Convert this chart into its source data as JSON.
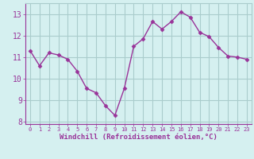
{
  "x": [
    0,
    1,
    2,
    3,
    4,
    5,
    6,
    7,
    8,
    9,
    10,
    11,
    12,
    13,
    14,
    15,
    16,
    17,
    18,
    19,
    20,
    21,
    22,
    23
  ],
  "y": [
    11.3,
    10.6,
    11.2,
    11.1,
    10.9,
    10.35,
    9.55,
    9.35,
    8.75,
    8.3,
    9.55,
    11.5,
    11.85,
    12.65,
    12.3,
    12.65,
    13.1,
    12.85,
    12.15,
    11.95,
    11.45,
    11.05,
    11.0,
    10.9
  ],
  "line_color": "#993399",
  "marker_color": "#993399",
  "bg_color": "#d5f0f0",
  "grid_color": "#aacccc",
  "xlabel": "Windchill (Refroidissement éolien,°C)",
  "xlabel_color": "#993399",
  "tick_color": "#993399",
  "ylim": [
    7.9,
    13.5
  ],
  "xlim": [
    -0.5,
    23.5
  ],
  "yticks": [
    8,
    9,
    10,
    11,
    12,
    13
  ],
  "xticks": [
    0,
    1,
    2,
    3,
    4,
    5,
    6,
    7,
    8,
    9,
    10,
    11,
    12,
    13,
    14,
    15,
    16,
    17,
    18,
    19,
    20,
    21,
    22,
    23
  ]
}
